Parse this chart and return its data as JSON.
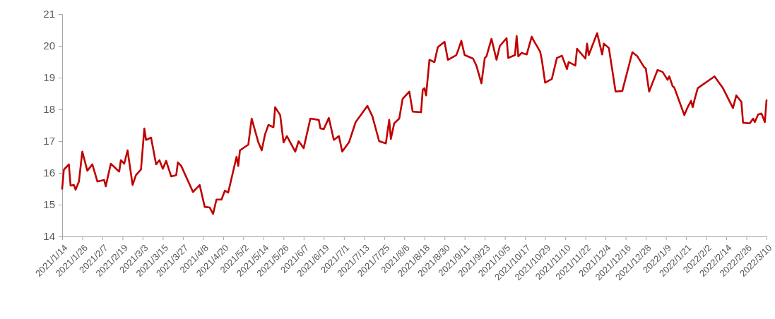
{
  "chart_data": {
    "type": "line",
    "xlim": [
      "2021-01-14",
      "2022-03-10"
    ],
    "ylim": [
      14,
      21
    ],
    "yticks": [
      14,
      15,
      16,
      17,
      18,
      19,
      20,
      21
    ],
    "xticks": [
      {
        "value": "2021-01-14",
        "label": "2021/1/14"
      },
      {
        "value": "2021-01-26",
        "label": "2021/1/26"
      },
      {
        "value": "2021-02-07",
        "label": "2021/2/7"
      },
      {
        "value": "2021-02-19",
        "label": "2021/2/19"
      },
      {
        "value": "2021-03-03",
        "label": "2021/3/3"
      },
      {
        "value": "2021-03-15",
        "label": "2021/3/15"
      },
      {
        "value": "2021-03-27",
        "label": "2021/3/27"
      },
      {
        "value": "2021-04-08",
        "label": "2021/4/8"
      },
      {
        "value": "2021-04-20",
        "label": "2021/4/20"
      },
      {
        "value": "2021-05-02",
        "label": "2021/5/2"
      },
      {
        "value": "2021-05-14",
        "label": "2021/5/14"
      },
      {
        "value": "2021-05-26",
        "label": "2021/5/26"
      },
      {
        "value": "2021-06-07",
        "label": "2021/6/7"
      },
      {
        "value": "2021-06-19",
        "label": "2021/6/19"
      },
      {
        "value": "2021-07-01",
        "label": "2021/7/1"
      },
      {
        "value": "2021-07-13",
        "label": "2021/7/13"
      },
      {
        "value": "2021-07-25",
        "label": "2021/7/25"
      },
      {
        "value": "2021-08-06",
        "label": "2021/8/6"
      },
      {
        "value": "2021-08-18",
        "label": "2021/8/18"
      },
      {
        "value": "2021-08-30",
        "label": "2021/8/30"
      },
      {
        "value": "2021-09-11",
        "label": "2021/9/11"
      },
      {
        "value": "2021-09-23",
        "label": "2021/9/23"
      },
      {
        "value": "2021-10-05",
        "label": "2021/10/5"
      },
      {
        "value": "2021-10-17",
        "label": "2021/10/17"
      },
      {
        "value": "2021-10-29",
        "label": "2021/10/29"
      },
      {
        "value": "2021-11-10",
        "label": "2021/11/10"
      },
      {
        "value": "2021-11-22",
        "label": "2021/11/22"
      },
      {
        "value": "2021-12-04",
        "label": "2021/12/4"
      },
      {
        "value": "2021-12-16",
        "label": "2021/12/16"
      },
      {
        "value": "2021-12-28",
        "label": "2021/12/28"
      },
      {
        "value": "2022-01-09",
        "label": "2022/1/9"
      },
      {
        "value": "2022-01-21",
        "label": "2022/1/21"
      },
      {
        "value": "2022-02-02",
        "label": "2022/2/2"
      },
      {
        "value": "2022-02-14",
        "label": "2022/2/14"
      },
      {
        "value": "2022-02-26",
        "label": "2022/2/26"
      },
      {
        "value": "2022-03-10",
        "label": "2022/3/10"
      }
    ],
    "grid": false,
    "marker": "none",
    "line_style": "solid",
    "series": [
      {
        "color": "#c00000",
        "x": [
          "2021-01-14",
          "2021-01-15",
          "2021-01-18",
          "2021-01-19",
          "2021-01-21",
          "2021-01-22",
          "2021-01-24",
          "2021-01-26",
          "2021-01-29",
          "2021-02-01",
          "2021-02-04",
          "2021-02-08",
          "2021-02-09",
          "2021-02-12",
          "2021-02-17",
          "2021-02-18",
          "2021-02-20",
          "2021-02-22",
          "2021-02-25",
          "2021-02-27",
          "2021-03-02",
          "2021-03-04",
          "2021-03-05",
          "2021-03-08",
          "2021-03-11",
          "2021-03-13",
          "2021-03-15",
          "2021-03-17",
          "2021-03-20",
          "2021-03-23",
          "2021-03-24",
          "2021-03-26",
          "2021-04-02",
          "2021-04-06",
          "2021-04-09",
          "2021-04-12",
          "2021-04-14",
          "2021-04-16",
          "2021-04-19",
          "2021-04-21",
          "2021-04-23",
          "2021-04-28",
          "2021-04-29",
          "2021-04-30",
          "2021-05-05",
          "2021-05-07",
          "2021-05-11",
          "2021-05-13",
          "2021-05-15",
          "2021-05-17",
          "2021-05-20",
          "2021-05-21",
          "2021-05-24",
          "2021-05-26",
          "2021-05-28",
          "2021-06-02",
          "2021-06-04",
          "2021-06-07",
          "2021-06-11",
          "2021-06-16",
          "2021-06-17",
          "2021-06-19",
          "2021-06-22",
          "2021-06-25",
          "2021-06-28",
          "2021-06-30",
          "2021-07-04",
          "2021-07-08",
          "2021-07-15",
          "2021-07-18",
          "2021-07-22",
          "2021-07-26",
          "2021-07-28",
          "2021-07-29",
          "2021-07-31",
          "2021-08-03",
          "2021-08-05",
          "2021-08-09",
          "2021-08-11",
          "2021-08-16",
          "2021-08-17",
          "2021-08-18",
          "2021-08-19",
          "2021-08-21",
          "2021-08-24",
          "2021-08-26",
          "2021-08-30",
          "2021-09-01",
          "2021-09-06",
          "2021-09-07",
          "2021-09-09",
          "2021-09-11",
          "2021-09-16",
          "2021-09-18",
          "2021-09-21",
          "2021-09-23",
          "2021-09-24",
          "2021-09-27",
          "2021-09-30",
          "2021-10-02",
          "2021-10-06",
          "2021-10-07",
          "2021-10-11",
          "2021-10-12",
          "2021-10-13",
          "2021-10-15",
          "2021-10-18",
          "2021-10-21",
          "2021-10-22",
          "2021-10-26",
          "2021-10-27",
          "2021-10-29",
          "2021-11-02",
          "2021-11-05",
          "2021-11-08",
          "2021-11-11",
          "2021-11-12",
          "2021-11-16",
          "2021-11-17",
          "2021-11-22",
          "2021-11-23",
          "2021-11-24",
          "2021-11-29",
          "2021-12-02",
          "2021-12-03",
          "2021-12-06",
          "2021-12-10",
          "2021-12-14",
          "2021-12-20",
          "2021-12-23",
          "2021-12-27",
          "2021-12-28",
          "2021-12-30",
          "2022-01-04",
          "2022-01-07",
          "2022-01-10",
          "2022-01-11",
          "2022-01-13",
          "2022-01-14",
          "2022-01-20",
          "2022-01-22",
          "2022-01-24",
          "2022-01-25",
          "2022-01-26",
          "2022-01-28",
          "2022-02-07",
          "2022-02-12",
          "2022-02-18",
          "2022-02-20",
          "2022-02-23",
          "2022-02-24",
          "2022-02-28",
          "2022-03-02",
          "2022-03-03",
          "2022-03-05",
          "2022-03-07",
          "2022-03-09",
          "2022-03-10"
        ],
        "values": [
          15.5,
          16.1,
          16.27,
          15.6,
          15.62,
          15.47,
          15.73,
          16.67,
          16.07,
          16.27,
          15.73,
          15.78,
          15.58,
          16.29,
          16.04,
          16.4,
          16.29,
          16.71,
          15.62,
          15.93,
          16.11,
          17.4,
          17.04,
          17.11,
          16.27,
          16.4,
          16.13,
          16.38,
          15.89,
          15.93,
          16.33,
          16.22,
          15.4,
          15.62,
          14.93,
          14.91,
          14.71,
          15.16,
          15.16,
          15.44,
          15.38,
          16.51,
          16.22,
          16.71,
          16.89,
          17.71,
          16.96,
          16.71,
          17.22,
          17.51,
          17.44,
          18.07,
          17.82,
          16.96,
          17.16,
          16.67,
          17.0,
          16.78,
          17.71,
          17.67,
          17.4,
          17.38,
          17.73,
          17.04,
          17.16,
          16.67,
          16.96,
          17.6,
          18.11,
          17.78,
          17.0,
          16.93,
          17.67,
          17.07,
          17.56,
          17.71,
          18.33,
          18.56,
          17.93,
          17.91,
          18.62,
          18.67,
          18.44,
          19.56,
          19.49,
          19.96,
          20.13,
          19.56,
          19.71,
          19.84,
          20.16,
          19.71,
          19.6,
          19.38,
          18.82,
          19.62,
          19.67,
          20.22,
          19.56,
          20.0,
          20.24,
          19.62,
          19.71,
          20.31,
          19.67,
          19.78,
          19.73,
          20.29,
          20.18,
          19.82,
          19.56,
          18.84,
          18.96,
          19.62,
          19.69,
          19.27,
          19.49,
          19.38,
          19.91,
          19.6,
          20.07,
          19.71,
          20.4,
          19.73,
          20.07,
          19.93,
          18.56,
          18.58,
          19.8,
          19.67,
          19.33,
          19.29,
          18.56,
          19.24,
          19.18,
          18.93,
          19.04,
          18.73,
          18.69,
          17.82,
          18.07,
          18.27,
          18.07,
          18.29,
          18.67,
          19.04,
          18.67,
          18.04,
          18.44,
          18.24,
          17.58,
          17.56,
          17.71,
          17.6,
          17.84,
          17.87,
          17.6,
          18.29
        ]
      }
    ]
  }
}
